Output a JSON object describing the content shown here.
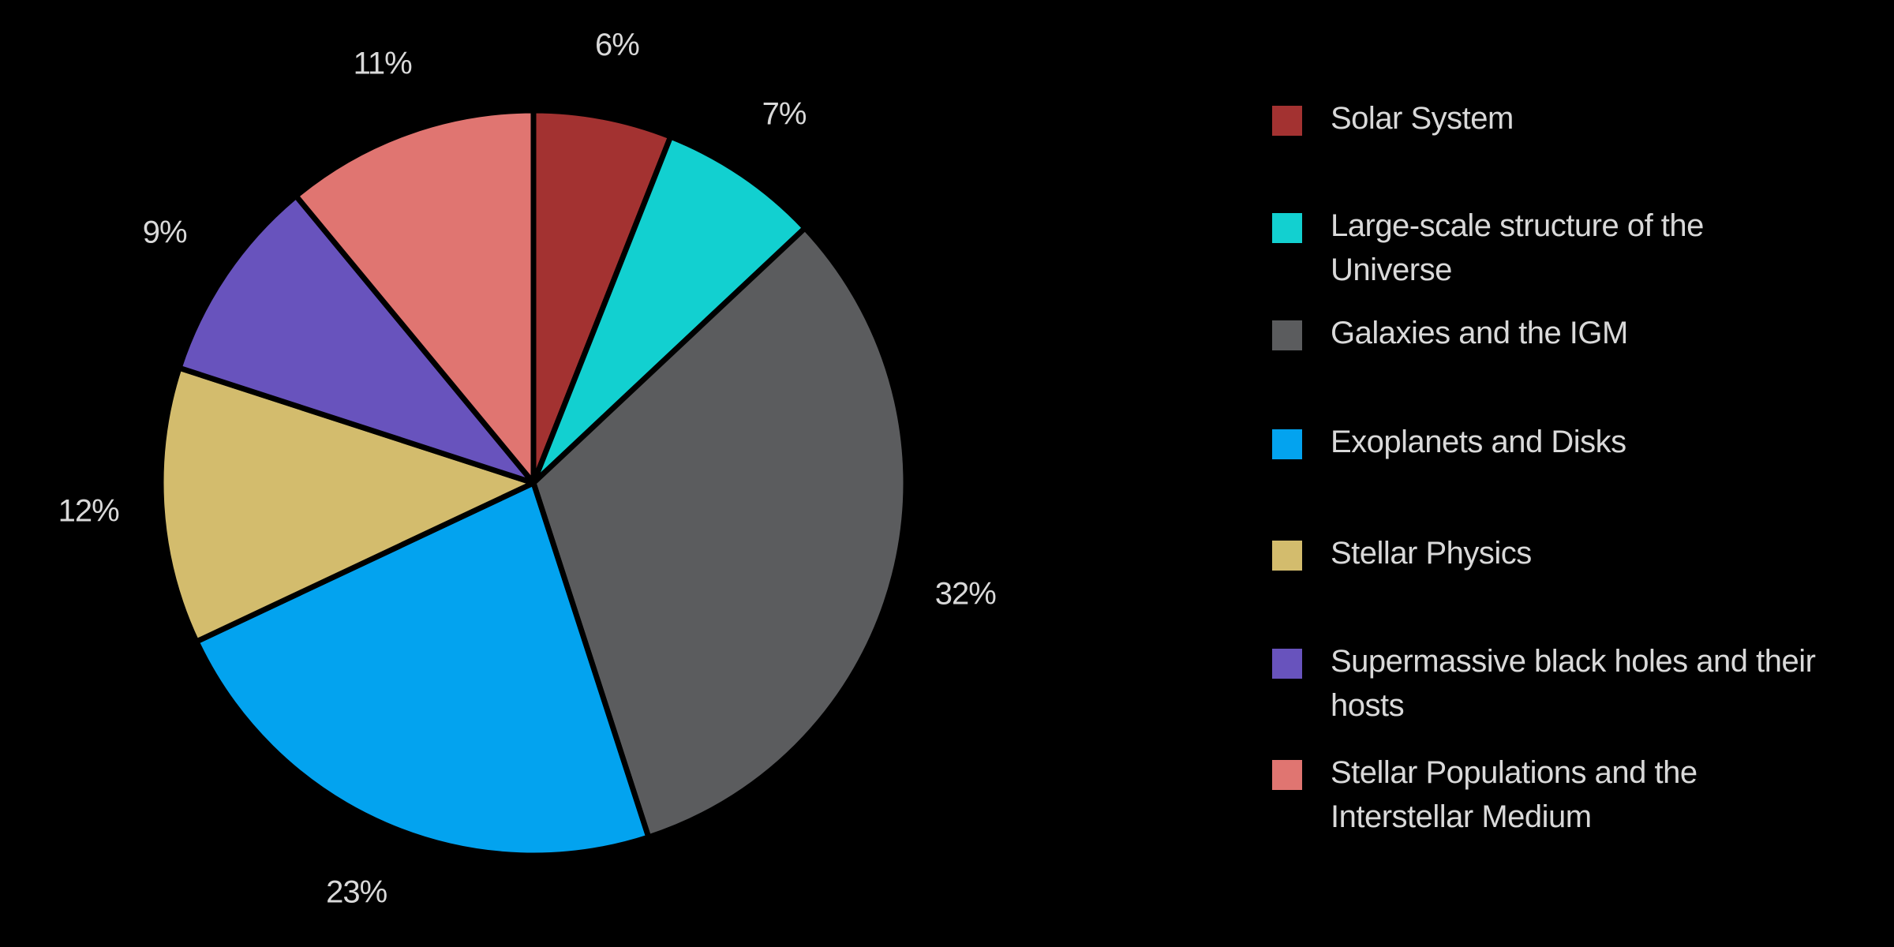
{
  "chart_data": {
    "type": "pie",
    "title": "",
    "start_angle_deg": 0,
    "direction": "clockwise",
    "legend_position": "right",
    "slices": [
      {
        "name": "Solar System",
        "value": 6,
        "label": "6%",
        "color": "#a33231"
      },
      {
        "name": "Large-scale structure of the Universe",
        "value": 7,
        "label": "7%",
        "color": "#12d0d0"
      },
      {
        "name": "Galaxies and the IGM",
        "value": 32,
        "label": "32%",
        "color": "#5b5c5e"
      },
      {
        "name": "Exoplanets and Disks",
        "value": 23,
        "label": "23%",
        "color": "#03a3ef"
      },
      {
        "name": "Stellar Physics",
        "value": 12,
        "label": "12%",
        "color": "#d3bc6d"
      },
      {
        "name": "Supermassive black holes and their hosts",
        "value": 9,
        "label": "9%",
        "color": "#6853bd"
      },
      {
        "name": "Stellar Populations and the Interstellar Medium",
        "value": 11,
        "label": "11%",
        "color": "#e07571"
      }
    ]
  },
  "legend": {
    "items": [
      {
        "label": "Solar System",
        "color": "#a33231"
      },
      {
        "label": "Large-scale structure of the Universe",
        "color": "#12d0d0"
      },
      {
        "label": "Galaxies and the IGM",
        "color": "#5b5c5e"
      },
      {
        "label": "Exoplanets and Disks",
        "color": "#03a3ef"
      },
      {
        "label": "Stellar Physics",
        "color": "#d3bc6d"
      },
      {
        "label": "Supermassive black holes and their hosts",
        "color": "#6853bd"
      },
      {
        "label": "Stellar Populations and the Interstellar Medium",
        "color": "#e07571"
      }
    ]
  },
  "colors": {
    "background": "#000000",
    "text": "#d9d9d9",
    "slice_border": "#000000"
  }
}
